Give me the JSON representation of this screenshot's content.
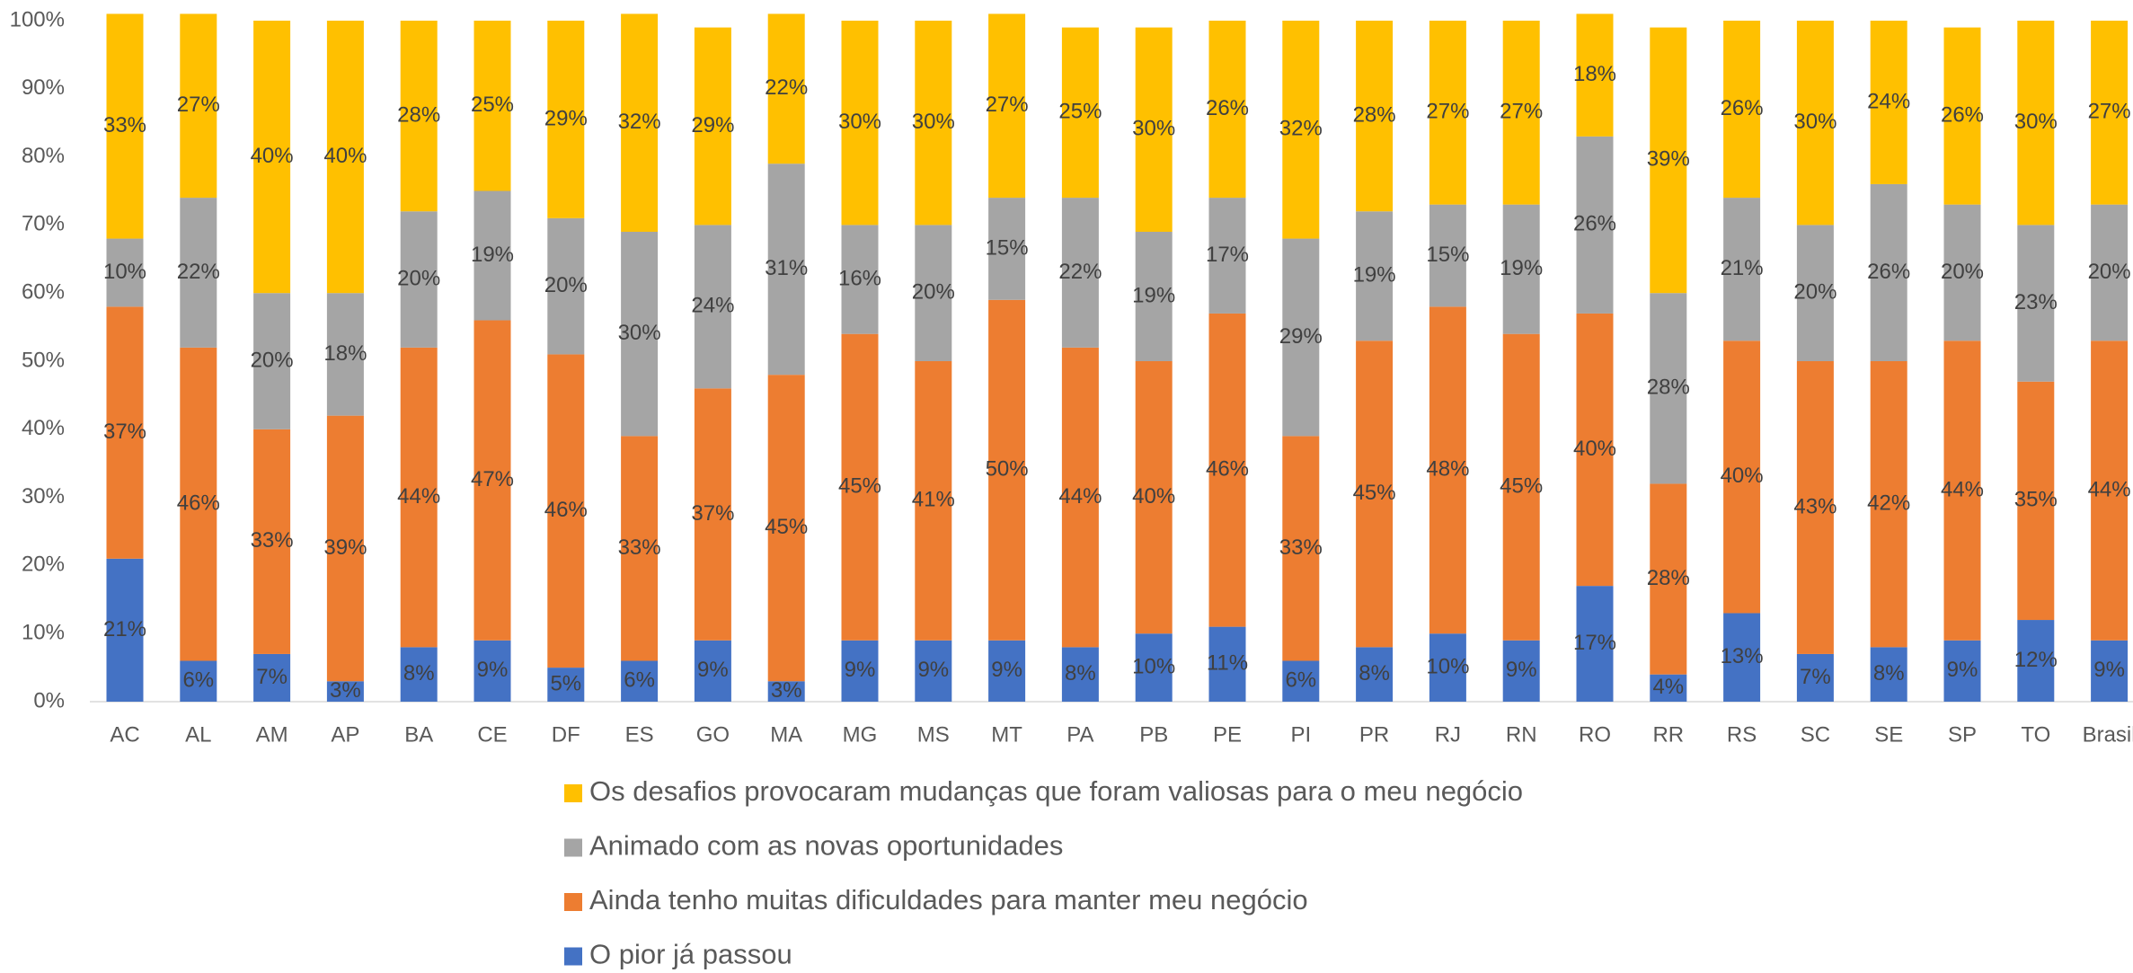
{
  "chart_data": {
    "type": "stacked_bar",
    "categories": [
      "AC",
      "AL",
      "AM",
      "AP",
      "BA",
      "CE",
      "DF",
      "ES",
      "GO",
      "MA",
      "MG",
      "MS",
      "MT",
      "PA",
      "PB",
      "PE",
      "PI",
      "PR",
      "RJ",
      "RN",
      "RO",
      "RR",
      "RS",
      "SC",
      "SE",
      "SP",
      "TO",
      "Brasil"
    ],
    "series": [
      {
        "name": "O pior já passou",
        "color": "#4472c4",
        "values": [
          21,
          6,
          7,
          3,
          8,
          9,
          5,
          6,
          9,
          3,
          9,
          9,
          9,
          8,
          10,
          11,
          6,
          8,
          10,
          9,
          17,
          4,
          13,
          7,
          8,
          9,
          12,
          9
        ],
        "value_labels": [
          "21%",
          "6%",
          "7%",
          "3%",
          "8%",
          "9%",
          "5%",
          "6%",
          "9%",
          "3%",
          "9%",
          "9%",
          "9%",
          "8%",
          "10%",
          "11%",
          "6%",
          "8%",
          "10%",
          "9%",
          "17%",
          "4%",
          "13%",
          "7%",
          "8%",
          "9%",
          "12%",
          "9%"
        ]
      },
      {
        "name": "Ainda tenho muitas dificuldades para manter meu negócio",
        "color": "#ed7d31",
        "values": [
          37,
          46,
          33,
          39,
          44,
          47,
          46,
          33,
          37,
          45,
          45,
          41,
          50,
          44,
          40,
          46,
          33,
          45,
          48,
          45,
          40,
          28,
          40,
          43,
          42,
          44,
          35,
          44
        ],
        "value_labels": [
          "37%",
          "46%",
          "33%",
          "39%",
          "44%",
          "47%",
          "46%",
          "33%",
          "37%",
          "45%",
          "45%",
          "41%",
          "50%",
          "44%",
          "40%",
          "46%",
          "33%",
          "45%",
          "48%",
          "45%",
          "40%",
          "28%",
          "40%",
          "43%",
          "42%",
          "44%",
          "35%",
          "44%"
        ]
      },
      {
        "name": "Animado com as novas oportunidades",
        "color": "#a5a5a5",
        "values": [
          10,
          22,
          20,
          18,
          20,
          19,
          20,
          30,
          24,
          31,
          16,
          20,
          15,
          22,
          19,
          17,
          29,
          19,
          15,
          19,
          26,
          28,
          21,
          20,
          26,
          20,
          23,
          20
        ],
        "value_labels": [
          "10%",
          "22%",
          "20%",
          "18%",
          "20%",
          "19%",
          "20%",
          "30%",
          "24%",
          "31%",
          "16%",
          "20%",
          "15%",
          "22%",
          "19%",
          "17%",
          "29%",
          "19%",
          "15%",
          "19%",
          "26%",
          "28%",
          "21%",
          "20%",
          "26%",
          "20%",
          "23%",
          "20%"
        ]
      },
      {
        "name": "Os desafios provocaram mudanças que foram valiosas para o meu negócio",
        "color": "#ffc000",
        "values": [
          33,
          27,
          40,
          40,
          28,
          25,
          29,
          32,
          29,
          22,
          30,
          30,
          27,
          25,
          30,
          26,
          32,
          28,
          27,
          27,
          18,
          39,
          26,
          30,
          24,
          26,
          30,
          27
        ],
        "value_labels": [
          "33%",
          "27%",
          "40%",
          "40%",
          "28%",
          "25%",
          "29%",
          "32%",
          "29%",
          "22%",
          "30%",
          "30%",
          "27%",
          "25%",
          "30%",
          "26%",
          "32%",
          "28%",
          "27%",
          "27%",
          "18%",
          "39%",
          "26%",
          "30%",
          "24%",
          "26%",
          "30%",
          "27%"
        ]
      }
    ],
    "ylim": [
      0,
      100
    ],
    "yticks": [
      {
        "value": 0,
        "label": "0%"
      },
      {
        "value": 10,
        "label": "10%"
      },
      {
        "value": 20,
        "label": "20%"
      },
      {
        "value": 30,
        "label": "30%"
      },
      {
        "value": 40,
        "label": "40%"
      },
      {
        "value": 50,
        "label": "50%"
      },
      {
        "value": 60,
        "label": "60%"
      },
      {
        "value": 70,
        "label": "70%"
      },
      {
        "value": 80,
        "label": "80%"
      },
      {
        "value": 90,
        "label": "90%"
      },
      {
        "value": 100,
        "label": "100%"
      }
    ]
  }
}
